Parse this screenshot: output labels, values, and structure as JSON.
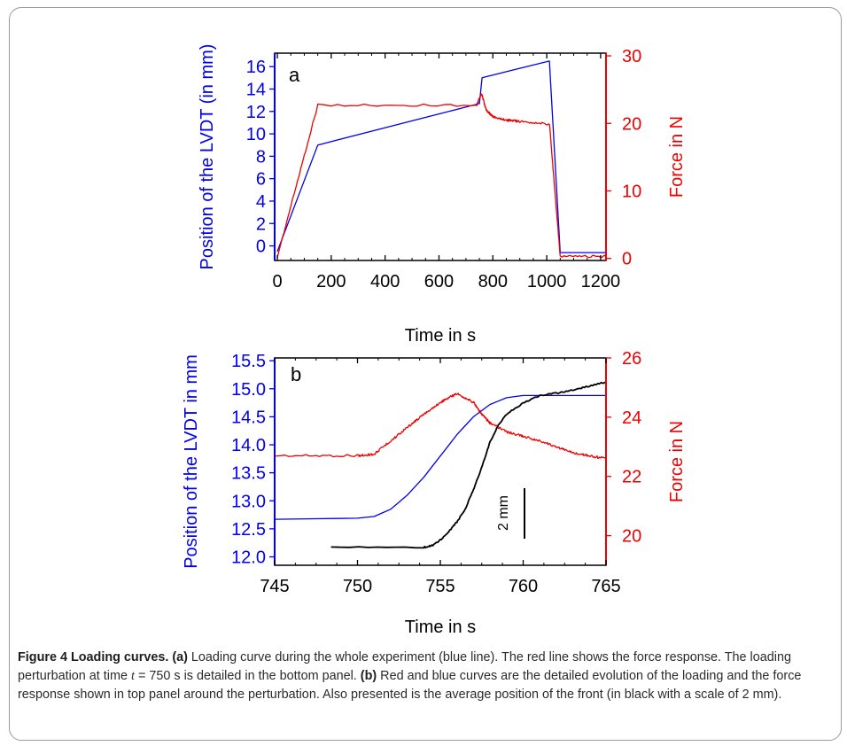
{
  "colors": {
    "loading": "#0000ee",
    "force": "#ee0000",
    "front": "#000000",
    "axis": "#000000"
  },
  "chart_data": [
    {
      "type": "line",
      "panel_label": "a",
      "xlabel": "Time in s",
      "ylabel_left": "Position of the LVDT (in mm)",
      "ylabel_right": "Force in N",
      "xlim": [
        -10,
        1220
      ],
      "ylim_left": [
        -1.3,
        17.2
      ],
      "ylim_right": [
        -0.3,
        30.4
      ],
      "x_ticks": [
        0,
        200,
        400,
        600,
        800,
        1000,
        1200
      ],
      "y_ticks_left": [
        0,
        2,
        4,
        6,
        8,
        10,
        12,
        14,
        16
      ],
      "y_ticks_right": [
        0,
        10,
        20,
        30
      ],
      "series": [
        {
          "axis": "left",
          "color": "#0000ee",
          "x": [
            0,
            150,
            750,
            760,
            1010,
            1050,
            1220
          ],
          "y": [
            -0.5,
            9.0,
            12.7,
            15.0,
            16.5,
            -0.6,
            -0.6
          ]
        },
        {
          "axis": "right",
          "color": "#ee0000",
          "x": [
            0,
            150,
            740,
            758,
            775,
            800,
            850,
            900,
            1010,
            1050,
            1220
          ],
          "y": [
            0.2,
            22.7,
            22.7,
            24.5,
            22.0,
            21.0,
            20.5,
            20.3,
            19.9,
            0.3,
            0.3
          ]
        }
      ]
    },
    {
      "type": "line",
      "panel_label": "b",
      "xlabel": "Time in s",
      "ylabel_left": "Position of the LVDT in mm",
      "ylabel_right": "Force in N",
      "xlim": [
        745,
        765
      ],
      "ylim_left": [
        11.85,
        15.55
      ],
      "ylim_right": [
        19.0,
        26.0
      ],
      "x_ticks": [
        745,
        750,
        755,
        760,
        765
      ],
      "y_ticks_left": [
        12.0,
        12.5,
        13.0,
        13.5,
        14.0,
        14.5,
        15.0,
        15.5
      ],
      "y_ticks_right": [
        20,
        22,
        24,
        26
      ],
      "scale_bar_label": "2 mm",
      "series": [
        {
          "axis": "left",
          "color": "#0000ee",
          "x": [
            745,
            750,
            751,
            752,
            753,
            754,
            755,
            756,
            757,
            758,
            759,
            760,
            761,
            762,
            765
          ],
          "y": [
            12.67,
            12.69,
            12.72,
            12.85,
            13.1,
            13.42,
            13.8,
            14.18,
            14.5,
            14.72,
            14.84,
            14.88,
            14.88,
            14.88,
            14.88
          ]
        },
        {
          "axis": "right",
          "color": "#ee0000",
          "x": [
            745,
            750,
            751,
            752,
            753,
            754,
            755,
            756,
            757,
            757.5,
            758,
            759,
            760,
            761,
            762,
            763,
            764,
            765
          ],
          "y": [
            22.7,
            22.7,
            22.75,
            23.2,
            23.65,
            24.1,
            24.5,
            24.8,
            24.5,
            24.1,
            23.8,
            23.5,
            23.35,
            23.2,
            23.0,
            22.8,
            22.7,
            22.6
          ]
        },
        {
          "axis": "left",
          "color": "#000000",
          "x": [
            748.4,
            754,
            754.5,
            755,
            755.5,
            756,
            756.5,
            757,
            757.5,
            758,
            758.5,
            759,
            760,
            761,
            762,
            763,
            764,
            765
          ],
          "y": [
            12.17,
            12.17,
            12.2,
            12.3,
            12.45,
            12.62,
            12.85,
            13.2,
            13.6,
            14.05,
            14.35,
            14.55,
            14.75,
            14.88,
            14.92,
            14.98,
            15.05,
            15.12
          ]
        }
      ]
    }
  ],
  "caption": {
    "head": "Figure 4 Loading curves.",
    "part_a": "(a)",
    "text_a1": " Loading curve during the whole experiment (blue line). The red line shows the force response. The loading perturbation at time ",
    "t_var": "t",
    "text_a2": " = 750 s is detailed in the bottom panel. ",
    "part_b": "(b)",
    "text_b": " Red and blue curves are the detailed evolution of the loading and the force response shown in top panel around the perturbation. Also presented is the average position of the front (in black with a scale of 2 mm)."
  }
}
